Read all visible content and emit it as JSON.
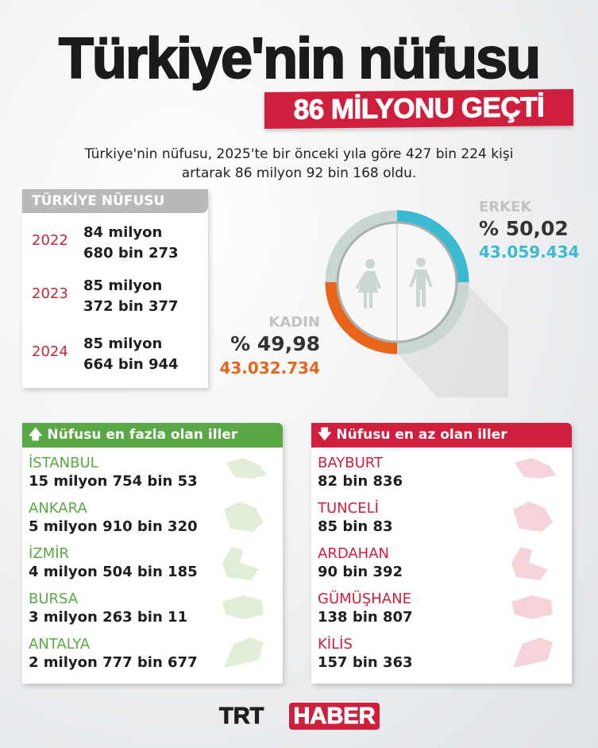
{
  "header": {
    "title": "Türkiye'nin nüfusu",
    "banner": "86 MİLYONU GEÇTİ",
    "subtitle_line1": "Türkiye'nin nüfusu, 2025'te bir önceki yıla göre 427 bin 224 kişi",
    "subtitle_line2": "artarak 86 milyon 92 bin 168 oldu."
  },
  "population": {
    "title": "TÜRKİYE NÜFUSU",
    "rows": [
      {
        "year": "2022",
        "line1": "84 milyon",
        "line2": "680 bin 273"
      },
      {
        "year": "2023",
        "line1": "85 milyon",
        "line2": "372 bin 377"
      },
      {
        "year": "2024",
        "line1": "85 milyon",
        "line2": "664 bin 944"
      }
    ]
  },
  "gender": {
    "male": {
      "label": "ERKEK",
      "percent": "% 50,02",
      "count": "43.059.434",
      "share": 50.02,
      "color": "#3bb9d1",
      "icon": "man-icon"
    },
    "female": {
      "label": "KADIN",
      "percent": "% 49,98",
      "count": "43.032.734",
      "share": 49.98,
      "color": "#e8651a",
      "icon": "woman-icon"
    }
  },
  "most": {
    "title": "Nüfusu en fazla olan iller",
    "icon": "arrow-up-icon",
    "color": "#5aa845",
    "items": [
      {
        "name": "İSTANBUL",
        "value": "15 milyon 754 bin 53"
      },
      {
        "name": "ANKARA",
        "value": "5 milyon 910 bin 320"
      },
      {
        "name": "İZMİR",
        "value": "4 milyon 504 bin 185"
      },
      {
        "name": "BURSA",
        "value": "3 milyon 263 bin 11"
      },
      {
        "name": "ANTALYA",
        "value": "2 milyon 777 bin 677"
      }
    ]
  },
  "least": {
    "title": "Nüfusu en az olan iller",
    "icon": "arrow-down-icon",
    "color": "#cf1f3c",
    "items": [
      {
        "name": "BAYBURT",
        "value": "82 bin 836"
      },
      {
        "name": "TUNCELİ",
        "value": "85 bin 83"
      },
      {
        "name": "ARDAHAN",
        "value": "90 bin 392"
      },
      {
        "name": "GÜMÜŞHANE",
        "value": "138 bin 807"
      },
      {
        "name": "KİLİS",
        "value": "157 bin 363"
      }
    ]
  },
  "logo": {
    "trt": "TRT",
    "haber": "HABER"
  }
}
